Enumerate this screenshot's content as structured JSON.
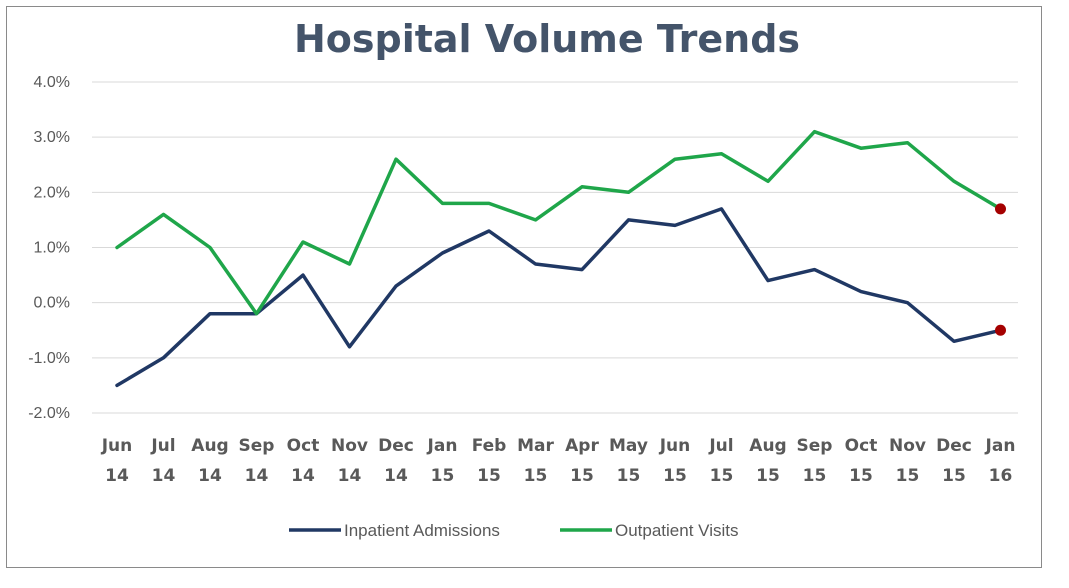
{
  "chart_data": {
    "type": "line",
    "title": "Hospital Volume Trends",
    "xlabel": "",
    "ylabel": "",
    "y_ticks": [
      "4.0%",
      "3.0%",
      "2.0%",
      "1.0%",
      "0.0%",
      "-1.0%",
      "-2.0%"
    ],
    "ylim": [
      -2.0,
      4.0
    ],
    "grid": true,
    "legend_position": "bottom",
    "categories": [
      [
        "Jun",
        "14"
      ],
      [
        "Jul",
        "14"
      ],
      [
        "Aug",
        "14"
      ],
      [
        "Sep",
        "14"
      ],
      [
        "Oct",
        "14"
      ],
      [
        "Nov",
        "14"
      ],
      [
        "Dec",
        "14"
      ],
      [
        "Jan",
        "15"
      ],
      [
        "Feb",
        "15"
      ],
      [
        "Mar",
        "15"
      ],
      [
        "Apr",
        "15"
      ],
      [
        "May",
        "15"
      ],
      [
        "Jun",
        "15"
      ],
      [
        "Jul",
        "15"
      ],
      [
        "Aug",
        "15"
      ],
      [
        "Sep",
        "15"
      ],
      [
        "Oct",
        "15"
      ],
      [
        "Nov",
        "15"
      ],
      [
        "Dec",
        "15"
      ],
      [
        "Jan",
        "16"
      ]
    ],
    "series": [
      {
        "name": "Inpatient Admissions",
        "color": "#203864",
        "values": [
          -1.5,
          -1.0,
          -0.2,
          -0.2,
          0.5,
          -0.8,
          0.3,
          0.9,
          1.3,
          0.7,
          0.6,
          1.5,
          1.4,
          1.7,
          0.4,
          0.6,
          0.2,
          0.0,
          -0.7,
          -0.5
        ],
        "marker_last": true
      },
      {
        "name": "Outpatient Visits",
        "color": "#1fa64a",
        "values": [
          1.0,
          1.6,
          1.0,
          -0.2,
          1.1,
          0.7,
          2.6,
          1.8,
          1.8,
          1.5,
          2.1,
          2.0,
          2.6,
          2.7,
          2.2,
          3.1,
          2.8,
          2.9,
          2.2,
          1.7
        ],
        "marker_last": true
      }
    ],
    "marker_color": "#a50000"
  }
}
